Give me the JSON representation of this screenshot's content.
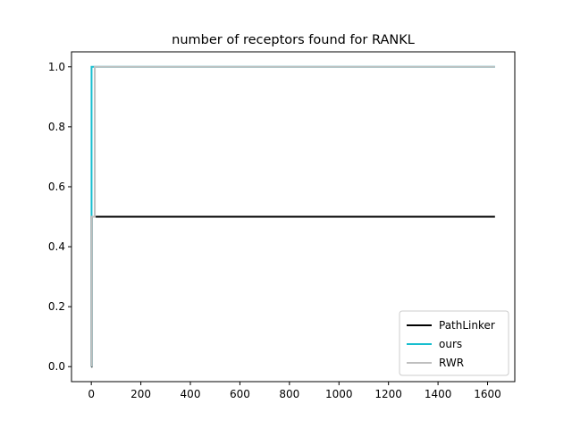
{
  "chart_data": {
    "type": "line",
    "title": "number of receptors found for RANKL",
    "xlabel": "",
    "ylabel": "",
    "xlim": [
      -80,
      1710
    ],
    "ylim": [
      -0.05,
      1.05
    ],
    "x_ticks": [
      0,
      200,
      400,
      600,
      800,
      1000,
      1200,
      1400,
      1600
    ],
    "y_ticks": [
      0.0,
      0.2,
      0.4,
      0.6,
      0.8,
      1.0
    ],
    "x_tick_labels": [
      "0",
      "200",
      "400",
      "600",
      "800",
      "1000",
      "1200",
      "1400",
      "1600"
    ],
    "y_tick_labels": [
      "0.0",
      "0.2",
      "0.4",
      "0.6",
      "0.8",
      "1.0"
    ],
    "legend_position": "lower-right",
    "grid": false,
    "series": [
      {
        "name": "PathLinker",
        "color": "#000000",
        "x": [
          0,
          0,
          1,
          1,
          1630
        ],
        "y": [
          0.0,
          0.0,
          0.0,
          0.5,
          0.5
        ]
      },
      {
        "name": "ours",
        "color": "#17becf",
        "x": [
          0,
          0,
          1,
          1,
          1630
        ],
        "y": [
          0.0,
          0.5,
          0.5,
          1.0,
          1.0
        ]
      },
      {
        "name": "RWR",
        "color": "#bfbfbf",
        "x": [
          0,
          0,
          14,
          14,
          1630
        ],
        "y": [
          0.0,
          0.5,
          0.5,
          1.0,
          1.0
        ]
      }
    ]
  }
}
